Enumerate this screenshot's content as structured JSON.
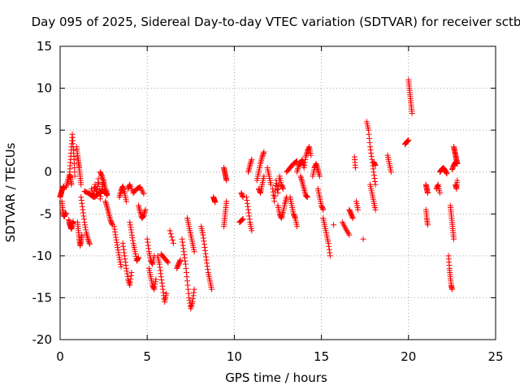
{
  "chart_data": {
    "type": "scatter",
    "title": "Day 095 of 2025, Sidereal Day-to-day VTEC variation (SDTVAR) for receiver sctb",
    "xlabel": "GPS time / hours",
    "ylabel": "SDTVAR / TECUs",
    "xlim": [
      0,
      25
    ],
    "ylim": [
      -20,
      15
    ],
    "xticks": [
      0,
      5,
      10,
      15,
      20,
      25
    ],
    "yticks": [
      -20,
      -15,
      -10,
      -5,
      0,
      5,
      10,
      15
    ],
    "xtick_labels": [
      "0",
      "5",
      "10",
      "15",
      "20",
      "25"
    ],
    "ytick_labels": [
      "-20",
      "-15",
      "-10",
      "-5",
      "0",
      "5",
      "10",
      "15"
    ],
    "grid": true,
    "marker": "+",
    "series": [
      {
        "name": "sctb",
        "color": "#ff0000",
        "tracks": [
          {
            "x": [
              0.0,
              0.05,
              0.1,
              0.15,
              0.2
            ],
            "y": [
              -3.0,
              -2.6,
              -2.2,
              -2.0,
              -1.7
            ]
          },
          {
            "x": [
              0.1,
              0.15,
              0.2,
              0.25,
              0.3,
              0.35
            ],
            "y": [
              -3.5,
              -4.5,
              -5.2,
              -5.3,
              -4.9,
              -5.0
            ]
          },
          {
            "x": [
              0.35,
              0.45,
              0.55,
              0.6,
              0.65
            ],
            "y": [
              -1.8,
              -1.0,
              -0.3,
              -0.8,
              -1.5
            ]
          },
          {
            "x": [
              0.5,
              0.55,
              0.6,
              0.65,
              0.7,
              0.75
            ],
            "y": [
              -5.7,
              -6.2,
              -6.5,
              -6.8,
              -6.2,
              -5.9
            ]
          },
          {
            "x": [
              0.55,
              0.6,
              0.65,
              0.7,
              0.75,
              0.8,
              0.85
            ],
            "y": [
              0.0,
              1.5,
              3.0,
              4.5,
              3.0,
              1.5,
              -0.5
            ]
          },
          {
            "x": [
              0.95,
              1.0,
              1.05,
              1.1,
              1.15,
              1.2
            ],
            "y": [
              3.0,
              2.0,
              1.2,
              0.5,
              -0.5,
              -1.5
            ]
          },
          {
            "x": [
              1.0,
              1.05,
              1.1,
              1.15,
              1.2,
              1.25
            ],
            "y": [
              -6.0,
              -7.0,
              -8.0,
              -8.8,
              -8.2,
              -7.5
            ]
          },
          {
            "x": [
              1.2,
              1.3,
              1.4,
              1.5,
              1.6,
              1.7
            ],
            "y": [
              -3.0,
              -4.5,
              -6.0,
              -7.2,
              -8.0,
              -8.6
            ]
          },
          {
            "x": [
              1.4,
              1.6,
              1.8,
              2.0,
              2.2,
              2.4,
              2.6,
              2.7
            ],
            "y": [
              -2.3,
              -2.5,
              -2.8,
              -3.0,
              -2.6,
              -2.2,
              -2.4,
              -2.8
            ]
          },
          {
            "x": [
              1.8,
              1.9,
              2.0,
              2.1,
              2.2,
              2.3,
              2.4,
              2.5
            ],
            "y": [
              -2.0,
              -3.0,
              -1.5,
              -2.6,
              -0.8,
              -3.2,
              -2.0,
              -1.0
            ]
          },
          {
            "x": [
              2.3,
              2.4,
              2.5,
              2.6,
              2.7
            ],
            "y": [
              0.0,
              -0.5,
              -1.2,
              -2.0,
              -2.6
            ]
          },
          {
            "x": [
              2.6,
              2.7,
              2.8,
              2.9,
              3.0
            ],
            "y": [
              -3.5,
              -4.2,
              -5.0,
              -5.8,
              -6.3
            ]
          },
          {
            "x": [
              3.1,
              3.2,
              3.3,
              3.4,
              3.5
            ],
            "y": [
              -6.5,
              -7.8,
              -9.0,
              -10.2,
              -11.3
            ]
          },
          {
            "x": [
              3.4,
              3.5,
              3.6,
              3.7,
              3.8
            ],
            "y": [
              -3.0,
              -2.2,
              -1.7,
              -2.5,
              -3.5
            ]
          },
          {
            "x": [
              3.6,
              3.7,
              3.8,
              3.9,
              4.0,
              4.1
            ],
            "y": [
              -8.5,
              -10.0,
              -11.5,
              -12.8,
              -13.5,
              -12.0
            ]
          },
          {
            "x": [
              3.9,
              4.0,
              4.2,
              4.4,
              4.6,
              4.8
            ],
            "y": [
              -2.0,
              -1.5,
              -2.5,
              -2.0,
              -1.8,
              -2.6
            ]
          },
          {
            "x": [
              4.0,
              4.1,
              4.2,
              4.3,
              4.4,
              4.5
            ],
            "y": [
              -6.0,
              -7.2,
              -8.5,
              -9.5,
              -10.6,
              -10.2
            ]
          },
          {
            "x": [
              4.5,
              4.6,
              4.7,
              4.8,
              4.9
            ],
            "y": [
              -4.0,
              -4.8,
              -5.5,
              -5.2,
              -4.5
            ]
          },
          {
            "x": [
              5.0,
              5.1,
              5.2,
              5.3,
              5.4
            ],
            "y": [
              -8.0,
              -9.5,
              -10.5,
              -11.0,
              -10.0
            ]
          },
          {
            "x": [
              5.1,
              5.2,
              5.3,
              5.4,
              5.5
            ],
            "y": [
              -11.5,
              -12.5,
              -13.5,
              -14.0,
              -12.8
            ]
          },
          {
            "x": [
              5.6,
              5.7,
              5.8,
              5.9,
              6.0,
              6.1
            ],
            "y": [
              -10.0,
              -11.0,
              -12.5,
              -14.0,
              -15.5,
              -14.5
            ]
          },
          {
            "x": [
              5.8,
              6.0,
              6.2
            ],
            "y": [
              -9.8,
              -10.3,
              -10.8
            ]
          },
          {
            "x": [
              6.3,
              6.5
            ],
            "y": [
              -7.0,
              -8.5
            ]
          },
          {
            "x": [
              6.7,
              6.8,
              6.9
            ],
            "y": [
              -11.5,
              -11.0,
              -10.5
            ]
          },
          {
            "x": [
              7.0,
              7.1,
              7.2,
              7.3,
              7.4,
              7.5,
              7.6,
              7.7
            ],
            "y": [
              -8.0,
              -9.5,
              -11.0,
              -13.0,
              -15.0,
              -16.3,
              -15.5,
              -14.0
            ]
          },
          {
            "x": [
              7.3,
              7.4,
              7.5,
              7.6,
              7.7
            ],
            "y": [
              -5.5,
              -6.5,
              -7.5,
              -8.5,
              -9.5
            ]
          },
          {
            "x": [
              8.1,
              8.2,
              8.3,
              8.4,
              8.5,
              8.6,
              8.7
            ],
            "y": [
              -6.5,
              -7.5,
              -9.0,
              -10.5,
              -12.0,
              -13.0,
              -14.0
            ]
          },
          {
            "x": [
              8.8,
              8.85,
              8.9
            ],
            "y": [
              -3.0,
              -3.3,
              -3.6
            ]
          },
          {
            "x": [
              9.4,
              9.45,
              9.5,
              9.55
            ],
            "y": [
              -6.5,
              -5.5,
              -4.5,
              -3.5
            ]
          },
          {
            "x": [
              9.4,
              9.45,
              9.5,
              9.55
            ],
            "y": [
              0.5,
              0.0,
              -0.5,
              -1.0
            ]
          },
          {
            "x": [
              10.3,
              10.4,
              10.5
            ],
            "y": [
              -6.0,
              -5.8,
              -5.6
            ]
          },
          {
            "x": [
              10.4,
              10.5
            ],
            "y": [
              -2.5,
              -3.0
            ]
          },
          {
            "x": [
              10.7,
              10.8,
              10.9,
              11.0
            ],
            "y": [
              -3.0,
              -4.5,
              -6.0,
              -7.0
            ]
          },
          {
            "x": [
              10.8,
              10.9,
              11.0
            ],
            "y": [
              0.0,
              0.8,
              1.5
            ]
          },
          {
            "x": [
              11.3,
              11.4,
              11.5,
              11.6,
              11.7
            ],
            "y": [
              -1.0,
              0.0,
              1.0,
              1.8,
              2.4
            ]
          },
          {
            "x": [
              11.4,
              11.5,
              11.6,
              11.7
            ],
            "y": [
              -2.0,
              -2.5,
              -1.5,
              -0.5
            ]
          },
          {
            "x": [
              11.9,
              12.0,
              12.1
            ],
            "y": [
              0.5,
              -0.5,
              -1.5
            ]
          },
          {
            "x": [
              12.2,
              12.3,
              12.4,
              12.5,
              12.6,
              12.7,
              12.8
            ],
            "y": [
              -2.0,
              -3.5,
              -1.0,
              -2.5,
              -0.5,
              -1.5,
              -2.0
            ]
          },
          {
            "x": [
              12.5,
              12.6,
              12.7,
              12.8,
              12.9,
              13.0
            ],
            "y": [
              -4.0,
              -5.0,
              -5.5,
              -4.8,
              -3.8,
              -3.0
            ]
          },
          {
            "x": [
              13.0,
              13.2,
              13.4,
              13.6
            ],
            "y": [
              0.0,
              0.5,
              1.0,
              1.3
            ]
          },
          {
            "x": [
              13.2,
              13.3,
              13.4,
              13.5,
              13.6
            ],
            "y": [
              -3.0,
              -4.0,
              -5.0,
              -5.5,
              -6.5
            ]
          },
          {
            "x": [
              13.6,
              13.7,
              13.8,
              13.9,
              14.0,
              14.1,
              14.2,
              14.3,
              14.4
            ],
            "y": [
              0.0,
              0.8,
              1.0,
              1.5,
              0.5,
              1.8,
              2.5,
              3.0,
              2.0
            ]
          },
          {
            "x": [
              13.8,
              13.9,
              14.0,
              14.1,
              14.2
            ],
            "y": [
              -0.5,
              -1.2,
              -2.0,
              -2.8,
              -3.0
            ]
          },
          {
            "x": [
              14.5,
              14.6,
              14.7,
              14.8,
              14.9
            ],
            "y": [
              -0.5,
              0.5,
              1.0,
              0.3,
              -0.5
            ]
          },
          {
            "x": [
              14.8,
              14.9,
              15.0,
              15.1
            ],
            "y": [
              -2.0,
              -3.0,
              -4.0,
              -4.5
            ]
          },
          {
            "x": [
              15.1,
              15.2,
              15.3,
              15.4,
              15.5
            ],
            "y": [
              -5.5,
              -6.5,
              -7.5,
              -8.5,
              -10.0
            ]
          },
          {
            "x": [
              15.7
            ],
            "y": [
              -6.3
            ]
          },
          {
            "x": [
              16.2,
              16.4,
              16.6
            ],
            "y": [
              -6.0,
              -6.8,
              -7.5
            ]
          },
          {
            "x": [
              16.6,
              16.7,
              16.8
            ],
            "y": [
              -4.5,
              -5.0,
              -5.5
            ]
          },
          {
            "x": [
              16.9,
              16.95
            ],
            "y": [
              1.8,
              0.5
            ]
          },
          {
            "x": [
              17.0,
              17.1
            ],
            "y": [
              -3.5,
              -4.5
            ]
          },
          {
            "x": [
              17.4
            ],
            "y": [
              -8.0
            ]
          },
          {
            "x": [
              17.6,
              17.7,
              17.8,
              17.9,
              18.0,
              18.1
            ],
            "y": [
              6.0,
              5.0,
              3.0,
              1.5,
              0.0,
              -1.5
            ]
          },
          {
            "x": [
              17.8,
              17.9,
              18.0,
              18.1
            ],
            "y": [
              -1.5,
              -2.5,
              -3.5,
              -4.5
            ]
          },
          {
            "x": [
              18.0,
              18.1
            ],
            "y": [
              1.2,
              0.8
            ]
          },
          {
            "x": [
              18.8,
              18.9,
              19.0
            ],
            "y": [
              2.0,
              1.0,
              0.0
            ]
          },
          {
            "x": [
              19.8,
              19.9,
              20.0
            ],
            "y": [
              3.3,
              3.6,
              3.8
            ]
          },
          {
            "x": [
              20.0,
              20.05,
              20.1,
              20.15,
              20.2
            ],
            "y": [
              11.0,
              10.0,
              9.0,
              8.0,
              7.0
            ]
          },
          {
            "x": [
              21.0,
              21.05,
              21.1
            ],
            "y": [
              -1.5,
              -2.0,
              -2.5
            ]
          },
          {
            "x": [
              21.0,
              21.05,
              21.1
            ],
            "y": [
              -4.5,
              -5.5,
              -6.3
            ]
          },
          {
            "x": [
              21.6,
              21.7,
              21.8
            ],
            "y": [
              -2.0,
              -1.5,
              -2.5
            ]
          },
          {
            "x": [
              21.8,
              21.9,
              22.0,
              22.1,
              22.2
            ],
            "y": [
              0.0,
              0.3,
              0.5,
              0.2,
              -0.2
            ]
          },
          {
            "x": [
              22.3,
              22.35,
              22.4,
              22.45,
              22.5
            ],
            "y": [
              -10.0,
              -11.5,
              -12.5,
              -13.5,
              -14.0
            ]
          },
          {
            "x": [
              22.4,
              22.45,
              22.5,
              22.55,
              22.6
            ],
            "y": [
              -4.0,
              -5.0,
              -6.0,
              -7.0,
              -8.0
            ]
          },
          {
            "x": [
              22.5,
              22.6,
              22.7,
              22.8
            ],
            "y": [
              0.3,
              0.8,
              1.2,
              1.0
            ]
          },
          {
            "x": [
              22.6,
              22.65,
              22.7,
              22.75,
              22.8
            ],
            "y": [
              3.0,
              2.5,
              2.0,
              1.5,
              1.0
            ]
          },
          {
            "x": [
              22.7,
              22.75,
              22.8
            ],
            "y": [
              -1.5,
              -2.0,
              -1.0
            ]
          }
        ]
      }
    ]
  }
}
